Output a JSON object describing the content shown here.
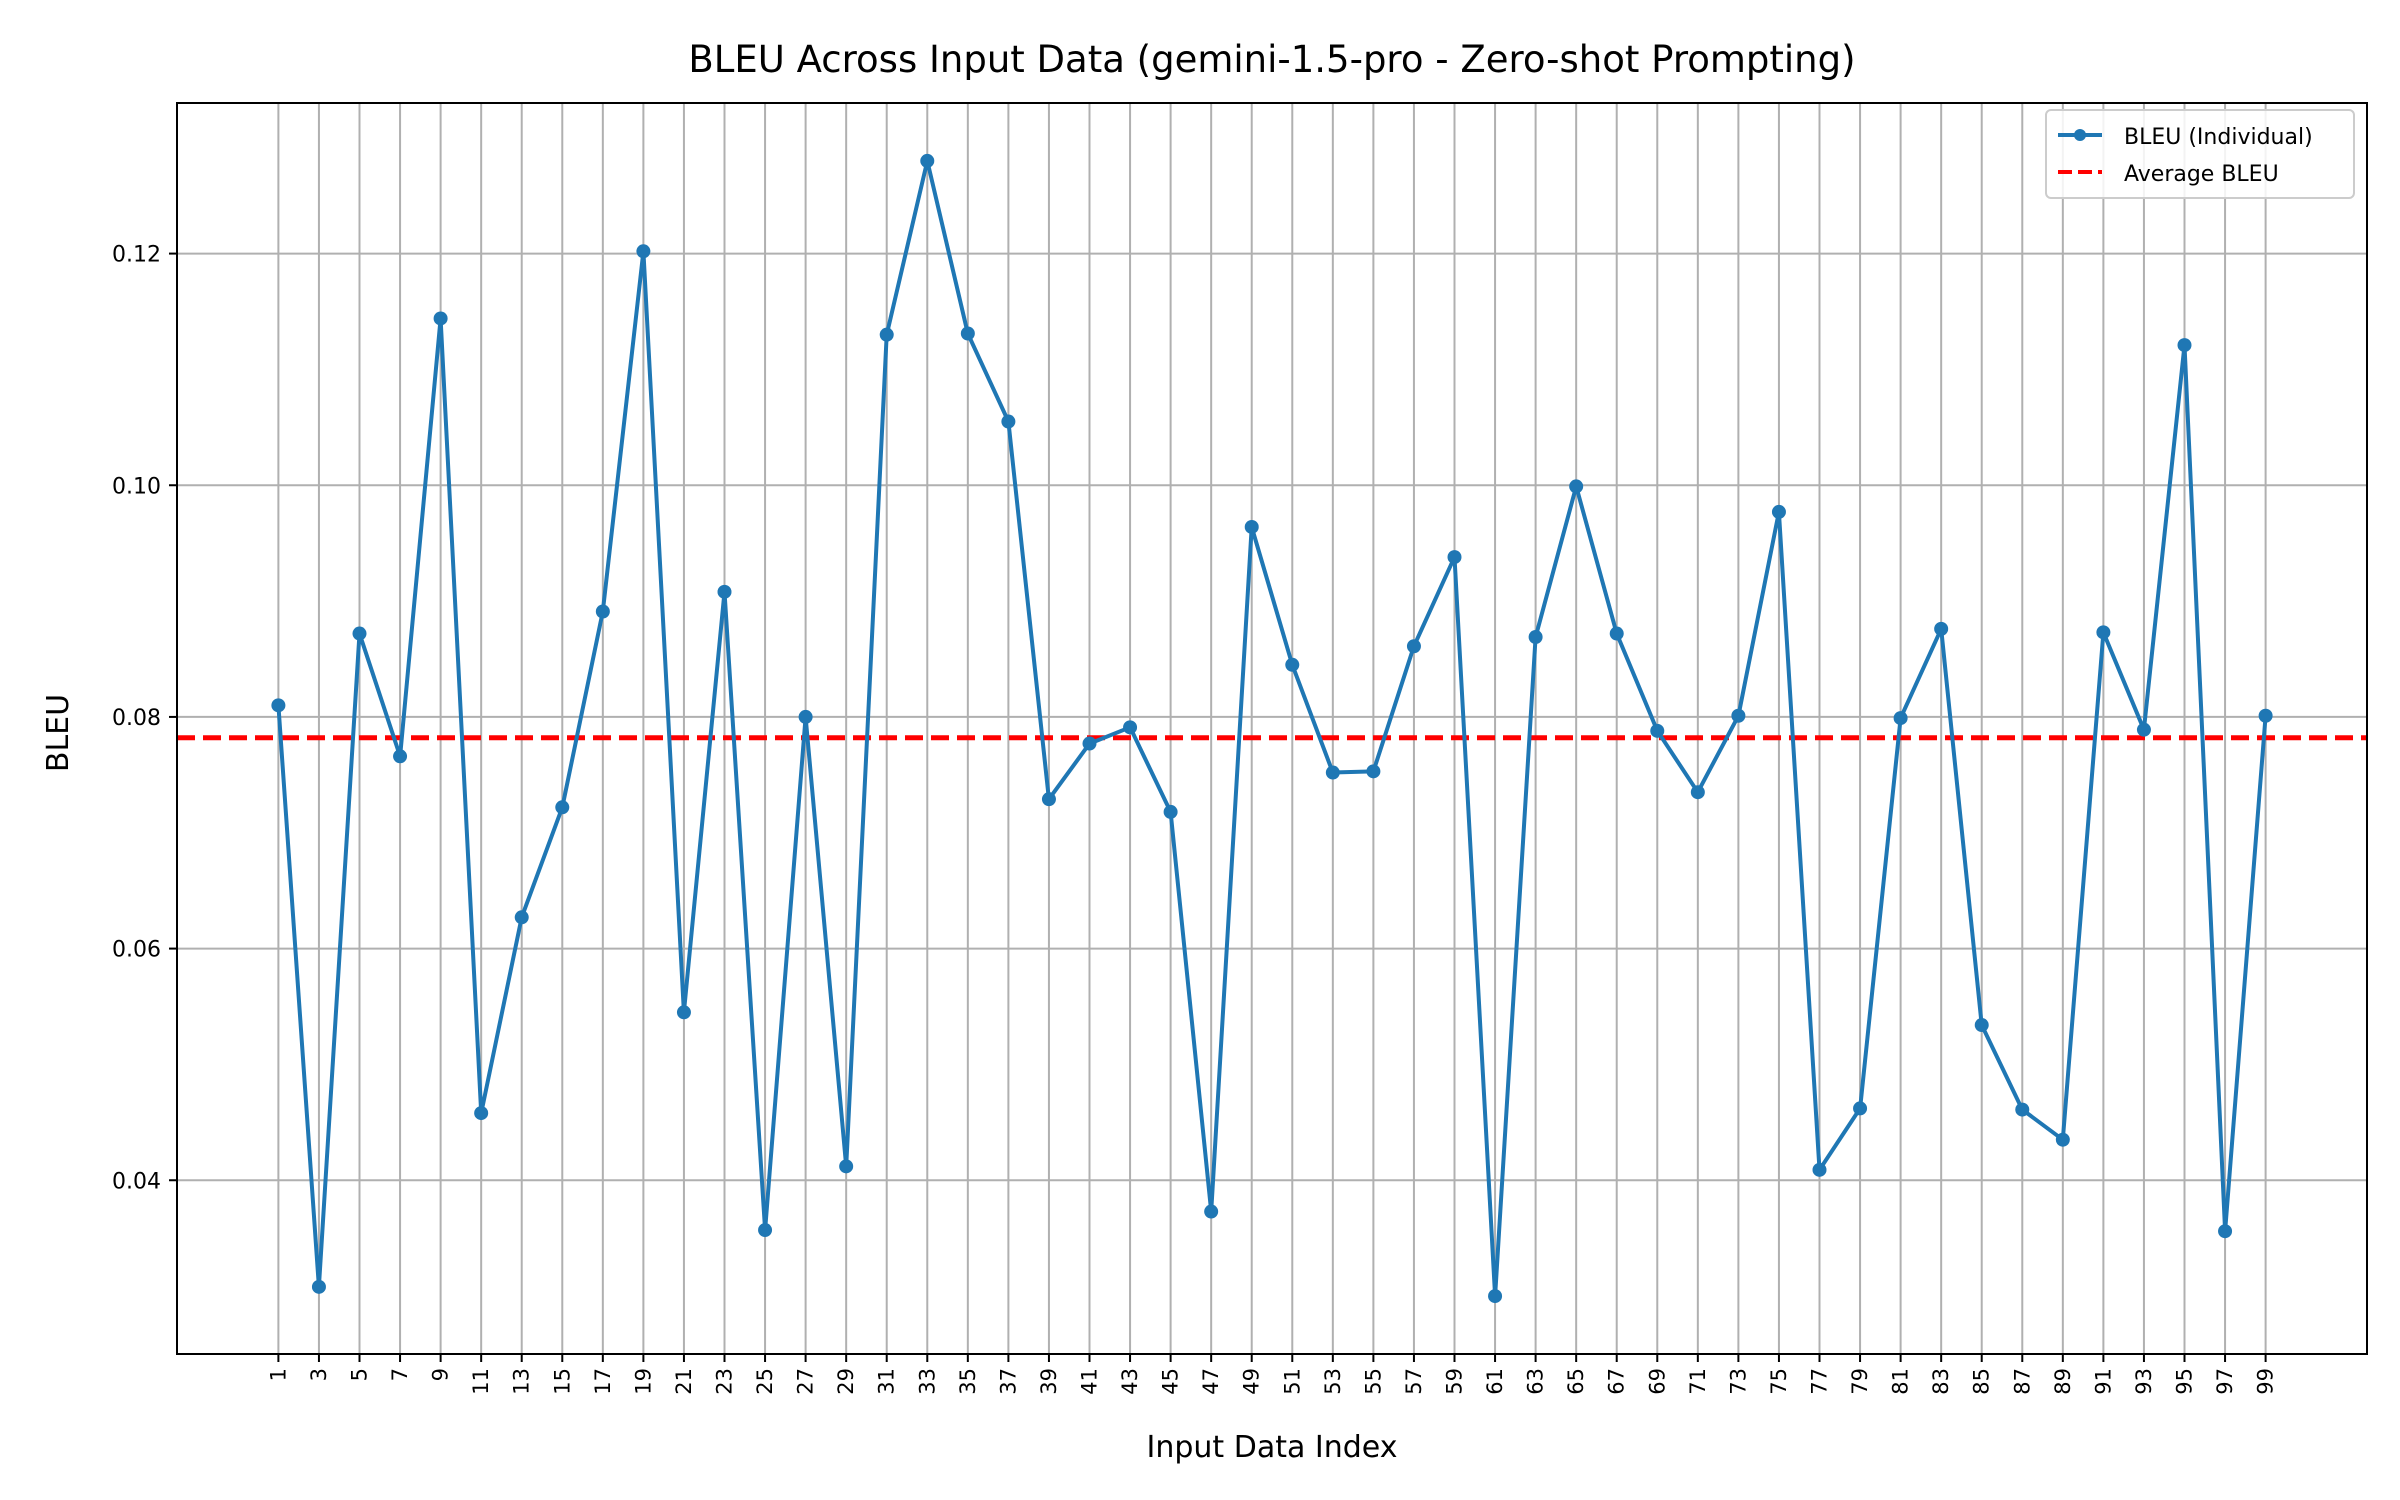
{
  "chart_data": {
    "type": "line",
    "title": "BLEU Across Input Data (gemini-1.5-pro - Zero-shot Prompting)",
    "xlabel": "Input Data Index",
    "ylabel": "BLEU",
    "x": [
      1,
      3,
      5,
      7,
      9,
      11,
      13,
      15,
      17,
      19,
      21,
      23,
      25,
      27,
      29,
      31,
      33,
      35,
      37,
      39,
      41,
      43,
      45,
      47,
      49,
      51,
      53,
      55,
      57,
      59,
      61,
      63,
      65,
      67,
      69,
      71,
      73,
      75,
      77,
      79,
      81,
      83,
      85,
      87,
      89,
      91,
      93,
      95,
      97,
      99
    ],
    "xticks": [
      "1",
      "3",
      "5",
      "7",
      "9",
      "11",
      "13",
      "15",
      "17",
      "19",
      "21",
      "23",
      "25",
      "27",
      "29",
      "31",
      "33",
      "35",
      "37",
      "39",
      "41",
      "43",
      "45",
      "47",
      "49",
      "51",
      "53",
      "55",
      "57",
      "59",
      "61",
      "63",
      "65",
      "67",
      "69",
      "71",
      "73",
      "75",
      "77",
      "79",
      "81",
      "83",
      "85",
      "87",
      "89",
      "91",
      "93",
      "95",
      "97",
      "99"
    ],
    "yticks": [
      "0.04",
      "0.06",
      "0.08",
      "0.10",
      "0.12"
    ],
    "ytick_values": [
      0.04,
      0.06,
      0.08,
      0.1,
      0.12
    ],
    "xlim": [
      -4,
      104
    ],
    "ylim": [
      0.025,
      0.133
    ],
    "grid": true,
    "legend_position": "top-right",
    "series": [
      {
        "name": "BLEU (Individual)",
        "color": "#1f77b4",
        "values": [
          0.081,
          0.0308,
          0.0872,
          0.0766,
          0.1144,
          0.0458,
          0.0627,
          0.0722,
          0.0891,
          0.1202,
          0.0545,
          0.0908,
          0.0357,
          0.08,
          0.0412,
          0.113,
          0.128,
          0.1131,
          0.1055,
          0.0729,
          0.0777,
          0.0791,
          0.0718,
          0.0373,
          0.0964,
          0.0845,
          0.0752,
          0.0753,
          0.0861,
          0.0938,
          0.03,
          0.0869,
          0.0999,
          0.0872,
          0.0788,
          0.0735,
          0.0801,
          0.0977,
          0.0409,
          0.0462,
          0.0799,
          0.0876,
          0.0534,
          0.0461,
          0.0435,
          0.0873,
          0.0789,
          0.1121,
          0.0356,
          0.0801
        ]
      }
    ],
    "average": {
      "name": "Average BLEU",
      "value": 0.0782,
      "color": "#ff0000"
    }
  }
}
